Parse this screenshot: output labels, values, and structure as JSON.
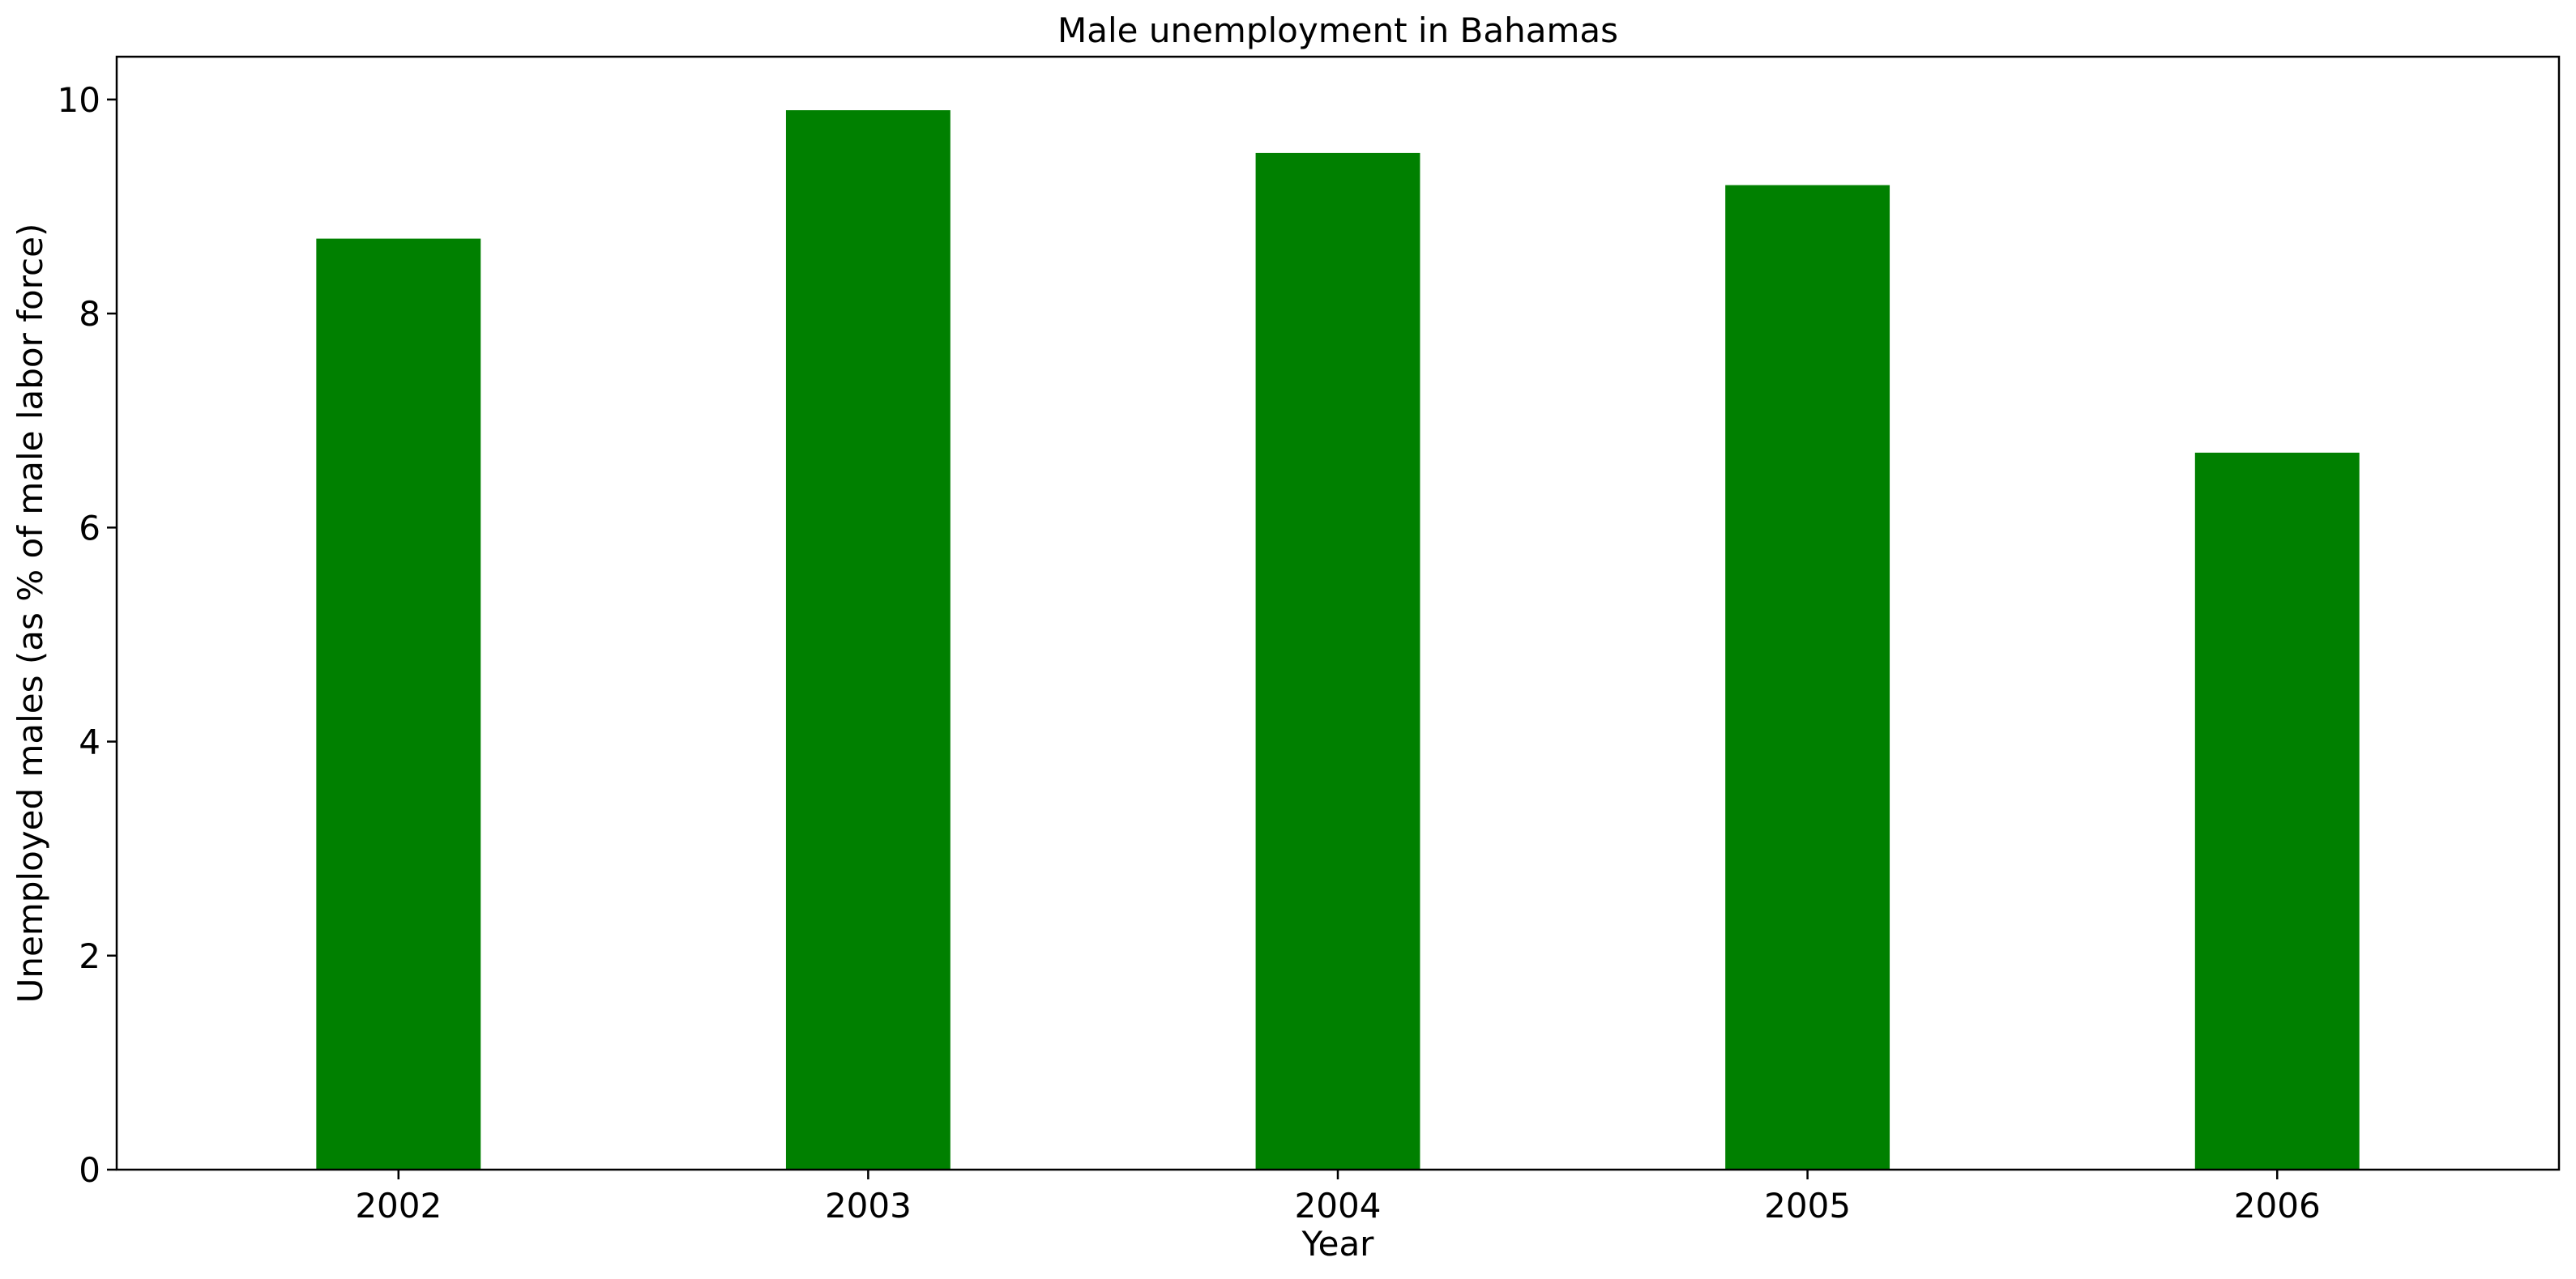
{
  "chart_data": {
    "type": "bar",
    "title": "Male unemployment in Bahamas",
    "xlabel": "Year",
    "ylabel": "Unemployed males (as % of male labor force)",
    "categories": [
      "2002",
      "2003",
      "2004",
      "2005",
      "2006"
    ],
    "values": [
      8.7,
      9.9,
      9.5,
      9.2,
      6.7
    ],
    "ylim": [
      0,
      10.4
    ],
    "yticks": [
      0,
      2,
      4,
      6,
      8,
      10
    ],
    "grid": false,
    "bar_color": "#008000"
  }
}
